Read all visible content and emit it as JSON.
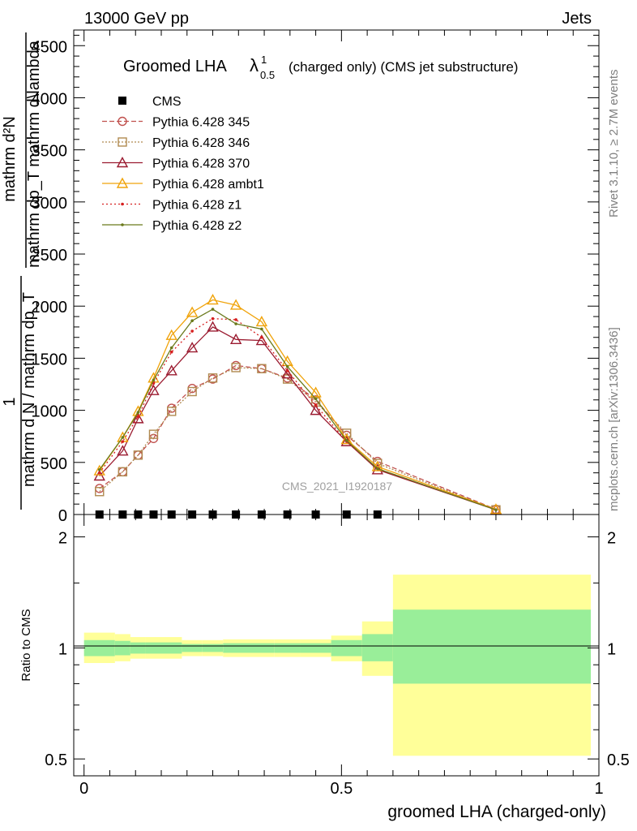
{
  "header": {
    "left": "13000 GeV pp",
    "right": "Jets"
  },
  "side_text": {
    "rivet": "Rivet 3.1.10, ≥ 2.7M events",
    "mcplots": "mcplots.cern.ch [arXiv:1306.3436]"
  },
  "watermark": "CMS_2021_I1920187",
  "chart_data": [
    {
      "type": "line",
      "title_main": "Groomed LHA",
      "title_lambda": "λ",
      "title_sup": "1",
      "title_sub": "0.5",
      "title_rest": "(charged only) (CMS jet substructure)",
      "ylabel_top": "mathrm d²N",
      "ylabel_top2": "mathrm dp_T mathrm d\\lambda",
      "ylabel_one": "1",
      "ylabel_bottom": "mathrm d N / mathrm dp_T",
      "ylim": [
        0,
        4650
      ],
      "xlim": [
        -0.02,
        1.0
      ],
      "yticks": [
        0,
        500,
        1000,
        1500,
        2000,
        2500,
        3000,
        3500,
        4000,
        4500
      ],
      "ytick_labels": [
        "0",
        "500",
        "1000",
        "1500",
        "2000",
        "2500",
        "3000",
        "3500",
        "4000",
        "4500"
      ],
      "legend_position": "top-left",
      "series": [
        {
          "name": "CMS",
          "color": "#000000",
          "marker": "square",
          "dash": "none",
          "x": [
            0.03,
            0.075,
            0.105,
            0.135,
            0.17,
            0.21,
            0.25,
            0.295,
            0.345,
            0.395,
            0.45,
            0.51,
            0.57
          ],
          "y": [
            0,
            0,
            0,
            0,
            0,
            0,
            0,
            0,
            0,
            0,
            0,
            0,
            0
          ]
        },
        {
          "name": "Pythia 6.428 345",
          "color": "#c0504d",
          "marker": "circle",
          "dash": "6,3",
          "x": [
            0.03,
            0.075,
            0.105,
            0.135,
            0.17,
            0.21,
            0.25,
            0.295,
            0.345,
            0.395,
            0.45,
            0.51,
            0.57,
            0.8
          ],
          "y": [
            250,
            410,
            570,
            730,
            1020,
            1210,
            1300,
            1430,
            1400,
            1310,
            1100,
            760,
            510,
            50
          ]
        },
        {
          "name": "Pythia 6.428 346",
          "color": "#b08a50",
          "marker": "square-open",
          "dash": "2,2",
          "x": [
            0.03,
            0.075,
            0.105,
            0.135,
            0.17,
            0.21,
            0.25,
            0.295,
            0.345,
            0.395,
            0.45,
            0.51,
            0.57,
            0.8
          ],
          "y": [
            220,
            410,
            570,
            770,
            990,
            1180,
            1310,
            1410,
            1400,
            1300,
            1080,
            780,
            490,
            45
          ]
        },
        {
          "name": "Pythia 6.428 370",
          "color": "#9b1b30",
          "marker": "triangle",
          "dash": "none",
          "x": [
            0.03,
            0.075,
            0.105,
            0.135,
            0.17,
            0.21,
            0.25,
            0.295,
            0.345,
            0.395,
            0.45,
            0.51,
            0.57,
            0.8
          ],
          "y": [
            370,
            610,
            920,
            1190,
            1380,
            1600,
            1800,
            1680,
            1670,
            1350,
            1000,
            700,
            430,
            45
          ]
        },
        {
          "name": "Pythia 6.428 ambt1",
          "color": "#f0a30a",
          "marker": "triangle",
          "dash": "none",
          "x": [
            0.03,
            0.075,
            0.105,
            0.135,
            0.17,
            0.21,
            0.25,
            0.295,
            0.345,
            0.395,
            0.45,
            0.51,
            0.57,
            0.8
          ],
          "y": [
            420,
            740,
            990,
            1310,
            1720,
            1940,
            2060,
            2010,
            1850,
            1470,
            1170,
            720,
            460,
            50
          ]
        },
        {
          "name": "Pythia 6.428 z1",
          "color": "#d62020",
          "marker": "dot",
          "dash": "2,3",
          "x": [
            0.03,
            0.075,
            0.105,
            0.135,
            0.17,
            0.21,
            0.25,
            0.295,
            0.345,
            0.395,
            0.45,
            0.51,
            0.57,
            0.8
          ],
          "y": [
            400,
            700,
            940,
            1260,
            1560,
            1760,
            1880,
            1870,
            1700,
            1380,
            1050,
            700,
            440,
            45
          ]
        },
        {
          "name": "Pythia 6.428 z2",
          "color": "#6b7a1c",
          "marker": "dot",
          "dash": "none",
          "x": [
            0.03,
            0.075,
            0.105,
            0.135,
            0.17,
            0.21,
            0.25,
            0.295,
            0.345,
            0.395,
            0.45,
            0.51,
            0.57,
            0.8
          ],
          "y": [
            430,
            740,
            980,
            1290,
            1600,
            1860,
            1970,
            1830,
            1780,
            1420,
            1110,
            710,
            440,
            45
          ]
        }
      ]
    },
    {
      "type": "area",
      "ylabel": "Ratio to CMS",
      "ylim": [
        0.45,
        2.3
      ],
      "log_scale": true,
      "xlim": [
        -0.02,
        1.0
      ],
      "xlabel": "groomed LHA (charged-only)",
      "xticks": [
        0,
        0.5,
        1
      ],
      "xtick_labels": [
        "0",
        "0.5",
        "1"
      ],
      "yticks": [
        0.5,
        1,
        2
      ],
      "ytick_labels": [
        "0.5",
        "1",
        "2"
      ],
      "bins": [
        {
          "lo": 0.0,
          "hi": 0.06,
          "inner": [
            0.95,
            1.05
          ],
          "outer": [
            0.91,
            1.1
          ]
        },
        {
          "lo": 0.06,
          "hi": 0.09,
          "inner": [
            0.955,
            1.045
          ],
          "outer": [
            0.92,
            1.09
          ]
        },
        {
          "lo": 0.09,
          "hi": 0.12,
          "inner": [
            0.965,
            1.035
          ],
          "outer": [
            0.935,
            1.07
          ]
        },
        {
          "lo": 0.12,
          "hi": 0.15,
          "inner": [
            0.965,
            1.035
          ],
          "outer": [
            0.935,
            1.07
          ]
        },
        {
          "lo": 0.15,
          "hi": 0.19,
          "inner": [
            0.965,
            1.035
          ],
          "outer": [
            0.935,
            1.07
          ]
        },
        {
          "lo": 0.19,
          "hi": 0.23,
          "inner": [
            0.975,
            1.025
          ],
          "outer": [
            0.95,
            1.05
          ]
        },
        {
          "lo": 0.23,
          "hi": 0.27,
          "inner": [
            0.975,
            1.025
          ],
          "outer": [
            0.95,
            1.05
          ]
        },
        {
          "lo": 0.27,
          "hi": 0.32,
          "inner": [
            0.97,
            1.03
          ],
          "outer": [
            0.945,
            1.055
          ]
        },
        {
          "lo": 0.32,
          "hi": 0.37,
          "inner": [
            0.97,
            1.03
          ],
          "outer": [
            0.945,
            1.055
          ]
        },
        {
          "lo": 0.37,
          "hi": 0.42,
          "inner": [
            0.97,
            1.03
          ],
          "outer": [
            0.945,
            1.055
          ]
        },
        {
          "lo": 0.42,
          "hi": 0.48,
          "inner": [
            0.97,
            1.03
          ],
          "outer": [
            0.945,
            1.055
          ]
        },
        {
          "lo": 0.48,
          "hi": 0.54,
          "inner": [
            0.95,
            1.05
          ],
          "outer": [
            0.92,
            1.08
          ]
        },
        {
          "lo": 0.54,
          "hi": 0.6,
          "inner": [
            0.92,
            1.09
          ],
          "outer": [
            0.84,
            1.18
          ]
        },
        {
          "lo": 0.6,
          "hi": 1.0,
          "inner": [
            0.8,
            1.27
          ],
          "outer": [
            0.51,
            1.58
          ]
        }
      ]
    }
  ]
}
